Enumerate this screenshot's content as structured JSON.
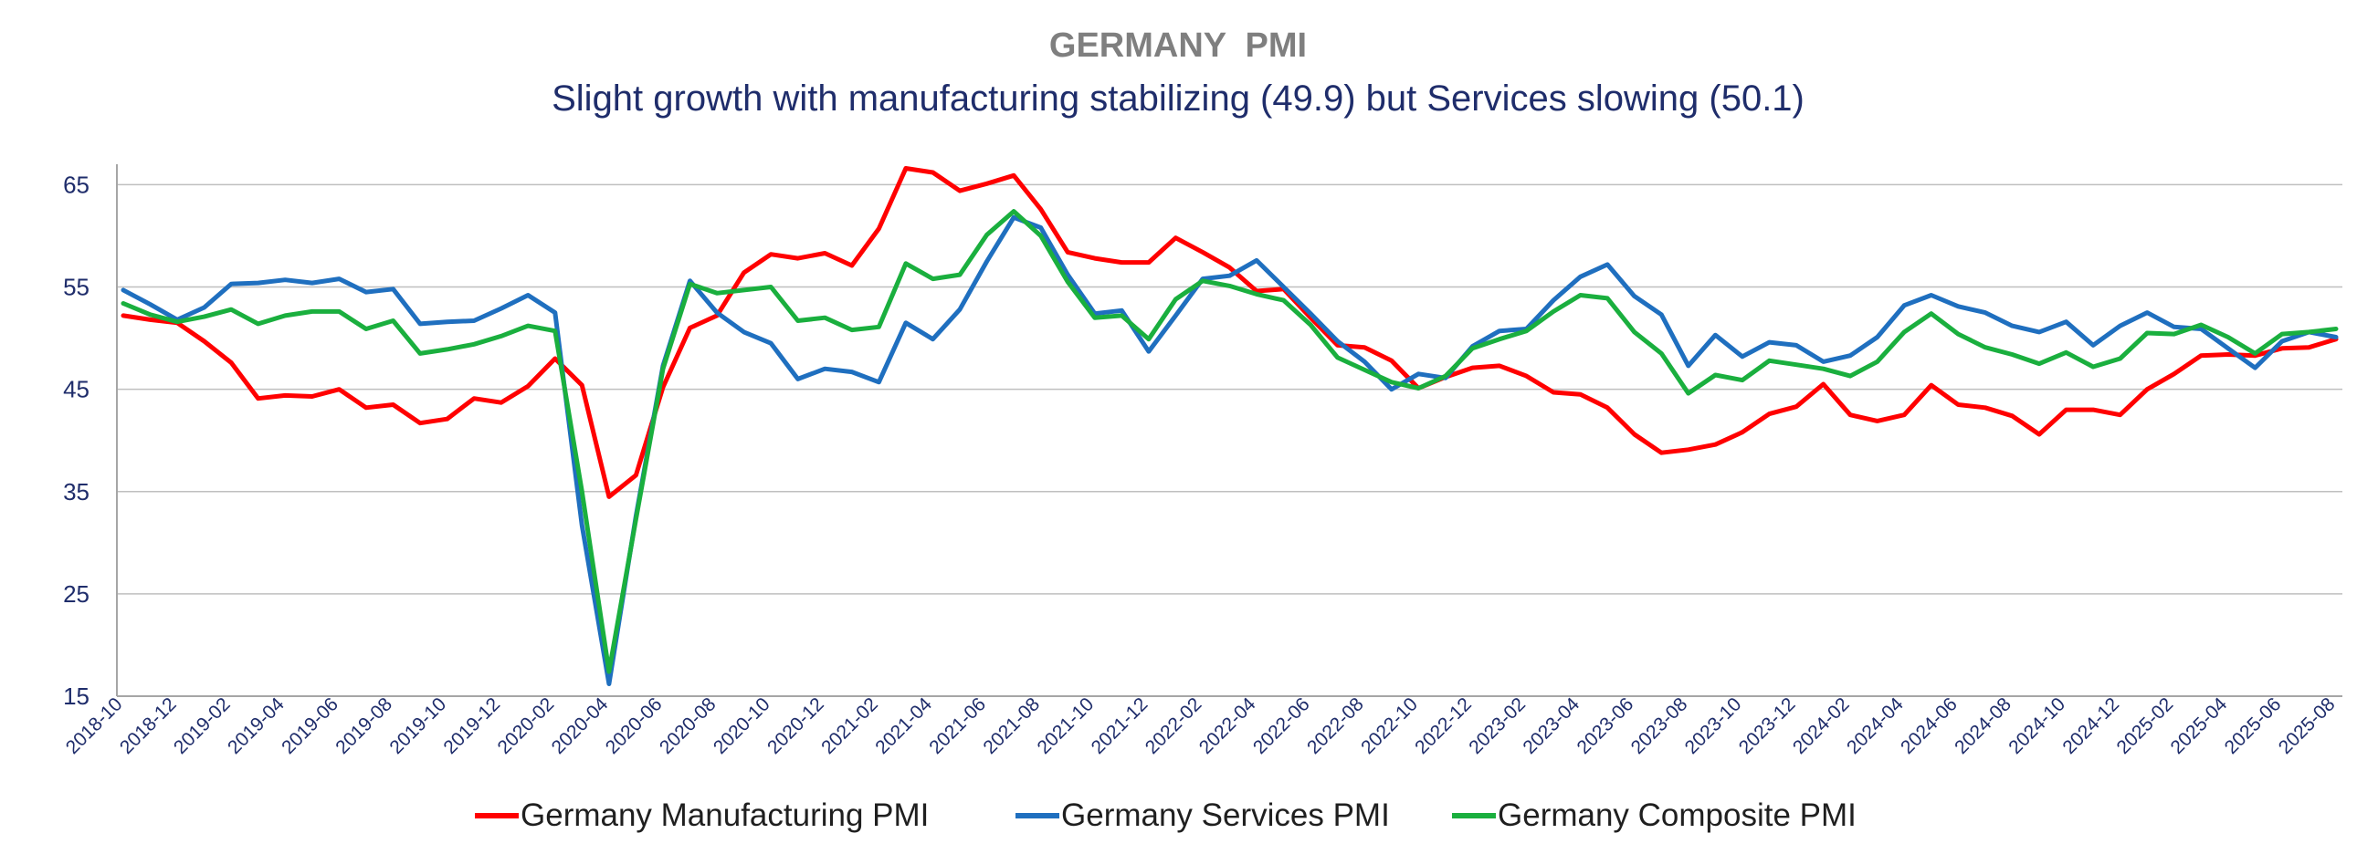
{
  "chart_data": {
    "type": "line",
    "title": "GERMANY  PMI",
    "subtitle": "Slight growth with manufacturing stabilizing (49.9) but Services slowing (50.1)",
    "ylim": [
      15,
      67
    ],
    "yticks": [
      15,
      25,
      35,
      45,
      55,
      65
    ],
    "grid": "horizontal",
    "legend_position": "bottom",
    "x": [
      "2018-10",
      "2018-11",
      "2018-12",
      "2019-01",
      "2019-02",
      "2019-03",
      "2019-04",
      "2019-05",
      "2019-06",
      "2019-07",
      "2019-08",
      "2019-09",
      "2019-10",
      "2019-11",
      "2019-12",
      "2020-01",
      "2020-02",
      "2020-03",
      "2020-04",
      "2020-05",
      "2020-06",
      "2020-07",
      "2020-08",
      "2020-09",
      "2020-10",
      "2020-11",
      "2020-12",
      "2021-01",
      "2021-02",
      "2021-03",
      "2021-04",
      "2021-05",
      "2021-06",
      "2021-07",
      "2021-08",
      "2021-09",
      "2021-10",
      "2021-11",
      "2021-12",
      "2022-01",
      "2022-02",
      "2022-03",
      "2022-04",
      "2022-05",
      "2022-06",
      "2022-07",
      "2022-08",
      "2022-09",
      "2022-10",
      "2022-11",
      "2022-12",
      "2023-01",
      "2023-02",
      "2023-03",
      "2023-04",
      "2023-05",
      "2023-06",
      "2023-07",
      "2023-08",
      "2023-09",
      "2023-10",
      "2023-11",
      "2023-12",
      "2024-01",
      "2024-02",
      "2024-03",
      "2024-04",
      "2024-05",
      "2024-06",
      "2024-07",
      "2024-08",
      "2024-09",
      "2024-10",
      "2024-11",
      "2024-12",
      "2025-01",
      "2025-02",
      "2025-03",
      "2025-04",
      "2025-05",
      "2025-06",
      "2025-07",
      "2025-08"
    ],
    "x_tick_labels": [
      "2018-10",
      "2018-12",
      "2019-02",
      "2019-04",
      "2019-06",
      "2019-08",
      "2019-10",
      "2019-12",
      "2020-02",
      "2020-04",
      "2020-06",
      "2020-08",
      "2020-10",
      "2020-12",
      "2021-02",
      "2021-04",
      "2021-06",
      "2021-08",
      "2021-10",
      "2021-12",
      "2022-02",
      "2022-04",
      "2022-06",
      "2022-08",
      "2022-10",
      "2022-12",
      "2023-02",
      "2023-04",
      "2023-06",
      "2023-08",
      "2023-10",
      "2023-12",
      "2024-02",
      "2024-04",
      "2024-06",
      "2024-08",
      "2024-10",
      "2024-12",
      "2025-02",
      "2025-04",
      "2025-06",
      "2025-08"
    ],
    "series": [
      {
        "name": "Germany Manufacturing PMI",
        "color": "#ff0000",
        "values": [
          52.2,
          51.8,
          51.5,
          49.7,
          47.6,
          44.1,
          44.4,
          44.3,
          45.0,
          43.2,
          43.5,
          41.7,
          42.1,
          44.1,
          43.7,
          45.3,
          48.0,
          45.4,
          34.5,
          36.6,
          45.2,
          51.0,
          52.2,
          56.4,
          58.2,
          57.8,
          58.3,
          57.1,
          60.7,
          66.6,
          66.2,
          64.4,
          65.1,
          65.9,
          62.6,
          58.4,
          57.8,
          57.4,
          57.4,
          59.8,
          58.4,
          56.9,
          54.6,
          54.8,
          52.0,
          49.3,
          49.1,
          47.8,
          45.1,
          46.2,
          47.1,
          47.3,
          46.3,
          44.7,
          44.5,
          43.2,
          40.6,
          38.8,
          39.1,
          39.6,
          40.8,
          42.6,
          43.3,
          45.5,
          42.5,
          41.9,
          42.5,
          45.4,
          43.5,
          43.2,
          42.4,
          40.6,
          43.0,
          43.0,
          42.5,
          45.0,
          46.5,
          48.3,
          48.4,
          48.3,
          49.0,
          49.1,
          49.9
        ]
      },
      {
        "name": "Germany Services PMI",
        "color": "#1f6fbf",
        "values": [
          54.7,
          53.3,
          51.8,
          53.0,
          55.3,
          55.4,
          55.7,
          55.4,
          55.8,
          54.5,
          54.8,
          51.4,
          51.6,
          51.7,
          52.9,
          54.2,
          52.5,
          31.7,
          16.2,
          32.6,
          47.3,
          55.6,
          52.5,
          50.6,
          49.5,
          46.0,
          47.0,
          46.7,
          45.7,
          51.5,
          49.9,
          52.8,
          57.5,
          61.8,
          60.8,
          56.2,
          52.4,
          52.7,
          48.7,
          52.2,
          55.8,
          56.1,
          57.6,
          55.0,
          52.4,
          49.7,
          47.7,
          45.0,
          46.5,
          46.1,
          49.2,
          50.7,
          50.9,
          53.7,
          56.0,
          57.2,
          54.1,
          52.3,
          47.3,
          50.3,
          48.2,
          49.6,
          49.3,
          47.7,
          48.3,
          50.1,
          53.2,
          54.2,
          53.1,
          52.5,
          51.2,
          50.6,
          51.6,
          49.3,
          51.2,
          52.5,
          51.1,
          50.9,
          49.0,
          47.1,
          49.7,
          50.6,
          50.1
        ]
      },
      {
        "name": "Germany Composite PMI",
        "color": "#1aaf3e",
        "values": [
          53.4,
          52.3,
          51.6,
          52.1,
          52.8,
          51.4,
          52.2,
          52.6,
          52.6,
          50.9,
          51.7,
          48.5,
          48.9,
          49.4,
          50.2,
          51.2,
          50.7,
          35.0,
          17.4,
          32.3,
          47.0,
          55.3,
          54.4,
          54.7,
          55.0,
          51.7,
          52.0,
          50.8,
          51.1,
          57.3,
          55.8,
          56.2,
          60.1,
          62.4,
          60.0,
          55.5,
          52.0,
          52.2,
          49.9,
          53.8,
          55.6,
          55.1,
          54.3,
          53.7,
          51.3,
          48.1,
          46.9,
          45.7,
          45.1,
          46.3,
          49.0,
          49.9,
          50.7,
          52.6,
          54.2,
          53.9,
          50.6,
          48.5,
          44.6,
          46.4,
          45.9,
          47.8,
          47.4,
          47.0,
          46.3,
          47.7,
          50.6,
          52.4,
          50.4,
          49.1,
          48.4,
          47.5,
          48.6,
          47.2,
          48.0,
          50.5,
          50.4,
          51.3,
          50.1,
          48.5,
          50.4,
          50.6,
          50.9
        ]
      }
    ]
  }
}
